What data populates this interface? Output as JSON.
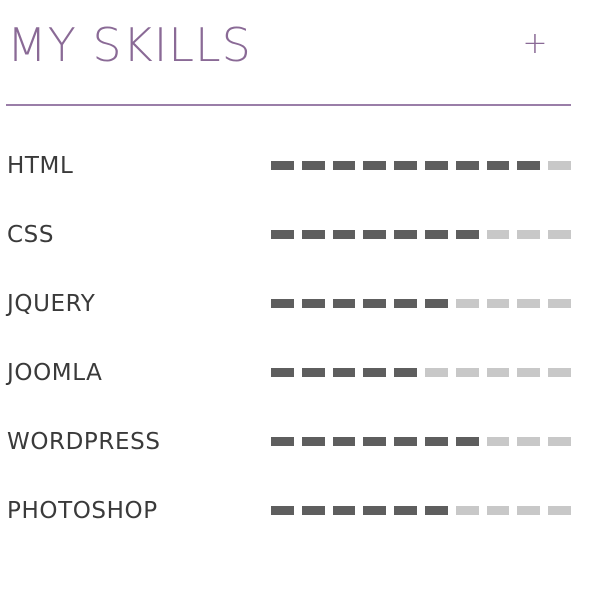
{
  "header": {
    "title": "MY SKILLS",
    "add_label": "+"
  },
  "colors": {
    "accent": "#8a6a96",
    "divider": "#9a7ea8",
    "text": "#3a3a3a",
    "segment_filled": "#5e5e5e",
    "segment_empty": "#c8c8c8"
  },
  "skills": [
    {
      "name": "HTML",
      "level": 9,
      "max": 10
    },
    {
      "name": "CSS",
      "level": 7,
      "max": 10
    },
    {
      "name": "JQUERY",
      "level": 6,
      "max": 10
    },
    {
      "name": "JOOMLA",
      "level": 5,
      "max": 10
    },
    {
      "name": "WORDPRESS",
      "level": 7,
      "max": 10
    },
    {
      "name": "PHOTOSHOP",
      "level": 6,
      "max": 10
    }
  ]
}
